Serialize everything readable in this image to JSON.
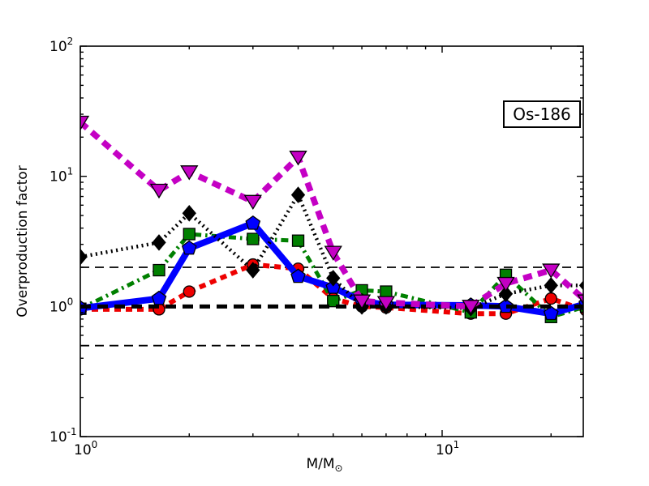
{
  "annotation": "Os-186",
  "chart_data": {
    "type": "line",
    "title": "",
    "xlabel_main": "M/M",
    "xlabel_sub": "⊙",
    "ylabel": "Overproduction factor",
    "x_scale": "log",
    "y_scale": "log",
    "xlim": [
      1,
      24.5
    ],
    "ylim": [
      0.1,
      100
    ],
    "grid": false,
    "legend": "none",
    "x": [
      1,
      1.65,
      2,
      3,
      4,
      5,
      6,
      7,
      12,
      15,
      20,
      25
    ],
    "series": [
      {
        "name": "red-dashed-circles",
        "color": "#ee0000",
        "style": "dashed",
        "marker": "circle",
        "values": [
          0.95,
          0.95,
          1.3,
          2.1,
          1.95,
          1.15,
          1.0,
          0.98,
          0.88,
          0.88,
          1.15,
          0.93
        ],
        "z": 1
      },
      {
        "name": "green-dashdot-squares",
        "color": "#008000",
        "style": "dashdot",
        "marker": "square",
        "values": [
          0.96,
          1.9,
          3.6,
          3.3,
          3.2,
          1.1,
          1.33,
          1.3,
          0.9,
          1.75,
          0.83,
          1.0
        ],
        "z": 2
      },
      {
        "name": "blue-solid-pentagons",
        "color": "#0000ff",
        "style": "solid",
        "marker": "pentagon",
        "values": [
          0.97,
          1.15,
          2.8,
          4.35,
          1.7,
          1.4,
          1.1,
          1.03,
          1.02,
          1.0,
          0.88,
          1.05
        ],
        "z": 3
      },
      {
        "name": "black-dotted-diamonds",
        "color": "#000000",
        "style": "dotted",
        "marker": "diamond",
        "values": [
          2.4,
          3.1,
          5.2,
          1.9,
          7.2,
          1.65,
          1.0,
          1.0,
          0.97,
          1.25,
          1.45,
          1.45
        ],
        "z": 5
      },
      {
        "name": "magenta-dashed-triangles",
        "color": "#c400c4",
        "style": "bold-dashed",
        "marker": "triangle-down",
        "values": [
          26,
          7.8,
          10.8,
          6.4,
          14,
          2.6,
          1.1,
          1.07,
          1.0,
          1.5,
          1.9,
          1.1
        ],
        "z": 6
      }
    ],
    "hlines": [
      {
        "y": 2,
        "weight": "thin",
        "z": 0
      },
      {
        "y": 0.5,
        "weight": "thin",
        "z": 0
      },
      {
        "y": 1,
        "weight": "thick",
        "z": 4
      }
    ],
    "x_ticks": [
      {
        "v": 1,
        "base": "10",
        "exp": "0"
      },
      {
        "v": 10,
        "base": "10",
        "exp": "1"
      }
    ],
    "y_ticks": [
      {
        "v": 0.1,
        "base": "10",
        "exp": "-1"
      },
      {
        "v": 1,
        "base": "10",
        "exp": "0"
      },
      {
        "v": 10,
        "base": "10",
        "exp": "1"
      },
      {
        "v": 100,
        "base": "10",
        "exp": "2"
      }
    ]
  }
}
